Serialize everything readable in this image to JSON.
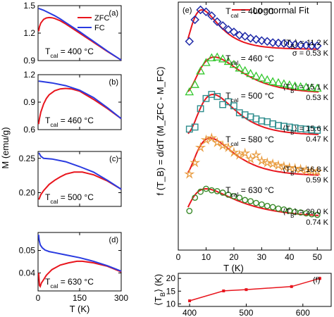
{
  "figure": {
    "left_ylabel": "M (emu/g)",
    "e_ylabel": "f (T_B) = d/dT (M_ZFC - M_FC)"
  },
  "chart_data": [
    {
      "panel": "(a)",
      "type": "line",
      "xlim": [
        0,
        300
      ],
      "ylim": [
        0.9,
        1.5
      ],
      "xticks": [
        0,
        150,
        300
      ],
      "xticklabels": [
        "",
        "",
        ""
      ],
      "yticks": [
        0.9,
        1.2,
        1.5
      ],
      "yticklabels": [
        "0.9",
        "1.2",
        "1.5"
      ],
      "annotation": "T_cal = 400 °C",
      "legend": [
        "ZFC",
        "FC"
      ],
      "legend_placement": "top-right",
      "series": [
        {
          "name": "ZFC",
          "color": "#e8151d",
          "x": [
            2,
            5,
            10,
            20,
            30,
            40,
            50,
            60,
            80,
            100,
            150,
            200,
            250,
            300
          ],
          "y": [
            1.22,
            1.27,
            1.31,
            1.35,
            1.365,
            1.37,
            1.368,
            1.36,
            1.335,
            1.3,
            1.2,
            1.1,
            1.0,
            0.905
          ]
        },
        {
          "name": "FC",
          "color": "#2a3be0",
          "x": [
            2,
            20,
            40,
            60,
            80,
            100,
            150,
            200,
            250,
            300
          ],
          "y": [
            1.47,
            1.45,
            1.42,
            1.39,
            1.355,
            1.315,
            1.215,
            1.11,
            1.005,
            0.905
          ]
        }
      ]
    },
    {
      "panel": "(b)",
      "type": "line",
      "xlim": [
        0,
        300
      ],
      "ylim": [
        0.6,
        1.2
      ],
      "xticks": [
        0,
        150,
        300
      ],
      "xticklabels": [
        "",
        "",
        ""
      ],
      "yticks": [
        0.6,
        0.9,
        1.2
      ],
      "yticklabels": [
        "0.6",
        "0.9",
        "1.2"
      ],
      "annotation": "T_cal = 460 °C",
      "series": [
        {
          "name": "ZFC",
          "color": "#e8151d",
          "x": [
            2,
            5,
            10,
            20,
            30,
            40,
            60,
            80,
            100,
            120,
            150,
            200,
            250,
            300
          ],
          "y": [
            0.66,
            0.72,
            0.79,
            0.88,
            0.94,
            0.98,
            1.025,
            1.045,
            1.05,
            1.045,
            1.02,
            0.93,
            0.83,
            0.72
          ]
        },
        {
          "name": "FC",
          "color": "#2a3be0",
          "x": [
            2,
            50,
            100,
            150,
            200,
            250,
            300
          ],
          "y": [
            1.13,
            1.11,
            1.08,
            1.03,
            0.95,
            0.84,
            0.72
          ]
        }
      ]
    },
    {
      "panel": "(c)",
      "type": "line",
      "xlim": [
        0,
        300
      ],
      "ylim": [
        0.18,
        0.26
      ],
      "xticks": [
        0,
        150,
        300
      ],
      "xticklabels": [
        "",
        "",
        ""
      ],
      "yticks": [
        0.2,
        0.25
      ],
      "yticklabels": [
        "0.20",
        "0.25"
      ],
      "annotation": "T_cal = 500 °C",
      "series": [
        {
          "name": "ZFC",
          "color": "#e8151d",
          "x": [
            3,
            10,
            20,
            40,
            60,
            80,
            100,
            130,
            160,
            200,
            250,
            300
          ],
          "y": [
            0.19,
            0.197,
            0.203,
            0.212,
            0.218,
            0.223,
            0.227,
            0.23,
            0.23,
            0.226,
            0.217,
            0.205
          ]
        },
        {
          "name": "FC",
          "color": "#2a3be0",
          "x": [
            3,
            10,
            20,
            50,
            100,
            150,
            200,
            250,
            300
          ],
          "y": [
            0.258,
            0.253,
            0.25,
            0.249,
            0.245,
            0.238,
            0.23,
            0.218,
            0.205
          ]
        }
      ]
    },
    {
      "panel": "(d)",
      "type": "line",
      "xlim": [
        0,
        300
      ],
      "ylim": [
        0.032,
        0.058
      ],
      "xticks": [
        0,
        150,
        300
      ],
      "xticklabels": [
        "0",
        "150",
        "300"
      ],
      "yticks": [
        0.04,
        0.05
      ],
      "yticklabels": [
        "0.04",
        "0.05"
      ],
      "annotation": "T_cal = 630 °C",
      "xlabel": "T (K)",
      "series": [
        {
          "name": "ZFC",
          "color": "#e8151d",
          "x": [
            2,
            5,
            8,
            12,
            20,
            30,
            50,
            80,
            110,
            140,
            160,
            200,
            250,
            300
          ],
          "y": [
            0.04,
            0.0345,
            0.034,
            0.0355,
            0.037,
            0.039,
            0.0415,
            0.0435,
            0.0445,
            0.0452,
            0.0452,
            0.0445,
            0.043,
            0.0405
          ]
        },
        {
          "name": "FC",
          "color": "#2a3be0",
          "x": [
            2,
            4,
            8,
            15,
            25,
            40,
            60,
            100,
            150,
            200,
            250,
            300
          ],
          "y": [
            0.057,
            0.0545,
            0.0525,
            0.0512,
            0.0502,
            0.0495,
            0.049,
            0.048,
            0.0468,
            0.0452,
            0.0432,
            0.0408
          ]
        }
      ]
    },
    {
      "panel": "(e)",
      "type": "scatter",
      "xlabel": "T (K)",
      "xlim": [
        0,
        55
      ],
      "xticks": [
        0,
        10,
        20,
        30,
        40,
        50
      ],
      "xticklabels": [
        "0",
        "10",
        "20",
        "30",
        "40",
        "50"
      ],
      "legend": [
        "Lognormal Fit"
      ],
      "legend_placement": "top-right",
      "fit_color": "#e8151d",
      "series": [
        {
          "name": "T_cal = 400 °C",
          "marker": "diamond",
          "color": "#1f2aa8",
          "mean": "⟨T_B⟩ = 11.2 K",
          "sigma": "σ = 0.53 K",
          "x": [
            4,
            6,
            8,
            10,
            12,
            14,
            16,
            18,
            20,
            22,
            24,
            26,
            28,
            30,
            32,
            34,
            36,
            38,
            40,
            42,
            44,
            46,
            48,
            50
          ],
          "y": [
            0.2,
            0.75,
            1,
            0.95,
            0.85,
            0.7,
            0.6,
            0.5,
            0.44,
            0.36,
            0.33,
            0.28,
            0.25,
            0.22,
            0.2,
            0.17,
            0.16,
            0.15,
            0.13,
            0.12,
            0.11,
            0.1,
            0.09,
            0.09
          ]
        },
        {
          "name": "T_cal = 460 °C",
          "marker": "triangle",
          "color": "#33c82e",
          "mean": "⟨T_B⟩ = 15.1 K",
          "sigma": "0.53 K",
          "x": [
            4,
            6,
            8,
            10,
            12,
            14,
            16,
            18,
            20,
            22,
            24,
            26,
            28,
            30,
            32,
            34,
            36,
            38,
            40,
            42,
            44,
            46,
            48,
            50
          ],
          "y": [
            0.05,
            0.25,
            0.62,
            0.85,
            0.98,
            1,
            0.95,
            0.88,
            0.8,
            0.7,
            0.63,
            0.55,
            0.48,
            0.43,
            0.38,
            0.33,
            0.3,
            0.27,
            0.24,
            0.21,
            0.19,
            0.18,
            0.16,
            0.15
          ]
        },
        {
          "name": "T_cal = 500 °C",
          "marker": "square",
          "color": "#2c8c8c",
          "mean": "⟨T_B⟩ = 15.6 K",
          "sigma": "0.47 K",
          "x": [
            4,
            6,
            8,
            10,
            12,
            14,
            16,
            18,
            20,
            22,
            24,
            26,
            28,
            30,
            32,
            34,
            36,
            38,
            40,
            42,
            44,
            46,
            48,
            50
          ],
          "y": [
            0.15,
            0.2,
            0.65,
            0.9,
            1,
            0.95,
            0.75,
            0.82,
            0.72,
            0.55,
            0.5,
            0.45,
            0.4,
            0.35,
            0.33,
            0.28,
            0.24,
            0.22,
            0.2,
            0.18,
            0.16,
            0.15,
            0.13,
            0.12
          ]
        },
        {
          "name": "T_cal = 580 °C",
          "marker": "star",
          "color": "#e89a3c",
          "mean": "⟨T_B⟩ = 16.8 K",
          "sigma": "0.59 K",
          "x": [
            4,
            6,
            8,
            10,
            12,
            14,
            16,
            18,
            20,
            22,
            24,
            26,
            28,
            30,
            32,
            34,
            36,
            38,
            40,
            42,
            44,
            46,
            48,
            50
          ],
          "y": [
            0.05,
            0.35,
            0.75,
            0.95,
            1,
            0.88,
            0.8,
            0.75,
            0.62,
            0.55,
            0.6,
            0.45,
            0.55,
            0.4,
            0.35,
            0.32,
            0.28,
            0.25,
            0.22,
            0.2,
            0.18,
            0.15,
            0.13,
            0.12
          ]
        },
        {
          "name": "T_cal = 630 °C",
          "marker": "circle",
          "color": "#3a8a2a",
          "mean": "⟨T_B⟩ = 20.0 K",
          "sigma": "0.74 K",
          "x": [
            4,
            6,
            8,
            10,
            12,
            14,
            16,
            18,
            20,
            22,
            24,
            26,
            28,
            30,
            32,
            34,
            36,
            38,
            40,
            42,
            44,
            46,
            48,
            50
          ],
          "y": [
            0.25,
            0.7,
            0.9,
            1,
            0.95,
            0.92,
            0.87,
            0.8,
            0.75,
            0.7,
            0.62,
            0.58,
            0.52,
            0.47,
            0.42,
            0.38,
            0.33,
            0.3,
            0.26,
            0.22,
            0.2,
            0.17,
            0.14,
            0.12
          ]
        }
      ]
    },
    {
      "panel": "(f)",
      "type": "line",
      "xlabel": "T_cal (°C)",
      "ylabel": "⟨T_B⟩ (K)",
      "xlim": [
        380,
        650
      ],
      "ylim": [
        9,
        22
      ],
      "xticks": [
        400,
        500,
        600
      ],
      "xticklabels": [
        "400",
        "500",
        "600"
      ],
      "yticks": [
        10,
        15,
        20
      ],
      "yticklabels": [
        "10",
        "15",
        "20"
      ],
      "series": [
        {
          "name": "",
          "color": "#e8151d",
          "x": [
            400,
            460,
            500,
            580,
            630
          ],
          "y": [
            11.2,
            15.1,
            15.6,
            16.8,
            20.0
          ],
          "err": [
            0.5,
            0.5,
            0.4,
            0.5,
            0.7
          ]
        }
      ]
    }
  ]
}
